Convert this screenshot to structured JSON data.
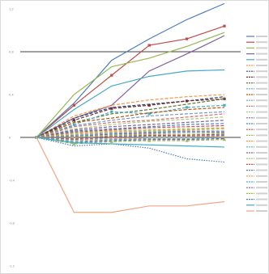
{
  "chart_data": {
    "type": "line",
    "title": "",
    "xlabel": "",
    "ylabel": "",
    "x": [
      0,
      1,
      2,
      3,
      4,
      5
    ],
    "ylim": [
      -1.2,
      1.2
    ],
    "yticks": [
      -1.2,
      -0.8,
      -0.4,
      0,
      0.4,
      0.8,
      1.2
    ],
    "ytick_labels": [
      "-1.2",
      "-0.8",
      "-0.4",
      "0",
      "0.4",
      "0.8",
      "1.2"
    ],
    "legend_position": "right",
    "grid": false,
    "series": [
      {
        "color": "#4a7ebb",
        "marker": "none",
        "dash": "solid",
        "values": [
          0,
          0.32,
          0.72,
          0.92,
          1.1,
          1.25
        ]
      },
      {
        "color": "#be4b48",
        "marker": "square",
        "dash": "solid",
        "values": [
          0,
          0.3,
          0.58,
          0.86,
          0.92,
          1.04
        ]
      },
      {
        "color": "#98b954",
        "marker": "none",
        "dash": "solid",
        "values": [
          0,
          0.4,
          0.66,
          0.74,
          0.85,
          0.98
        ]
      },
      {
        "color": "#7d60a0",
        "marker": "none",
        "dash": "solid",
        "values": [
          0,
          0.18,
          0.3,
          0.62,
          0.78,
          0.95
        ]
      },
      {
        "color": "#46aac4",
        "marker": "none",
        "dash": "solid",
        "values": [
          0,
          0.26,
          0.48,
          0.57,
          0.62,
          0.63
        ]
      },
      {
        "color": "#f79646",
        "marker": "none",
        "dash": "dashed",
        "values": [
          0,
          0.2,
          0.3,
          0.35,
          0.38,
          0.4
        ]
      },
      {
        "color": "#2c4d75",
        "marker": "none",
        "dash": "dashed",
        "values": [
          0,
          0.18,
          0.28,
          0.31,
          0.34,
          0.38
        ]
      },
      {
        "color": "#772c2a",
        "marker": "square",
        "dash": "dashed",
        "values": [
          0,
          0.16,
          0.27,
          0.3,
          0.34,
          0.36
        ]
      },
      {
        "color": "#5f7530",
        "marker": "none",
        "dash": "dashed",
        "values": [
          0,
          0.14,
          0.22,
          0.26,
          0.31,
          0.36
        ]
      },
      {
        "color": "#4bacc6",
        "marker": "square",
        "dash": "dashed",
        "values": [
          0,
          0.12,
          0.24,
          0.22,
          0.28,
          0.3
        ]
      },
      {
        "color": "#b65708",
        "marker": "none",
        "dash": "dashed",
        "values": [
          0,
          0.14,
          0.18,
          0.23,
          0.26,
          0.28
        ]
      },
      {
        "color": "#729aca",
        "marker": "none",
        "dash": "dashed",
        "values": [
          0,
          0.11,
          0.16,
          0.2,
          0.22,
          0.24
        ]
      },
      {
        "color": "#cd7371",
        "marker": "none",
        "dash": "dashed",
        "values": [
          0,
          0.1,
          0.14,
          0.16,
          0.19,
          0.22
        ]
      },
      {
        "color": "#afc97a",
        "marker": "none",
        "dash": "dashed",
        "values": [
          0,
          0.08,
          0.12,
          0.15,
          0.17,
          0.19
        ]
      },
      {
        "color": "#8064a2",
        "marker": "none",
        "dash": "dashed",
        "values": [
          0,
          0.07,
          0.1,
          0.12,
          0.14,
          0.16
        ]
      },
      {
        "color": "#4f81bd",
        "marker": "none",
        "dash": "dashed",
        "values": [
          0,
          0.06,
          0.08,
          0.1,
          0.12,
          0.13
        ]
      },
      {
        "color": "#c0504d",
        "marker": "none",
        "dash": "dashed",
        "values": [
          0,
          0.05,
          0.07,
          0.09,
          0.1,
          0.11
        ]
      },
      {
        "color": "#9bbb59",
        "marker": "none",
        "dash": "dashed",
        "values": [
          0,
          0.04,
          0.06,
          0.07,
          0.08,
          0.09
        ]
      },
      {
        "color": "#f79646",
        "marker": "none",
        "dash": "dashed",
        "values": [
          0,
          0.03,
          0.05,
          0.06,
          0.07,
          0.08
        ]
      },
      {
        "color": "#4bacc6",
        "marker": "none",
        "dash": "dashed",
        "values": [
          0,
          0.02,
          0.04,
          0.05,
          0.06,
          0.06
        ]
      },
      {
        "color": "#8064a2",
        "marker": "none",
        "dash": "dashed",
        "values": [
          0,
          0.01,
          0.03,
          0.04,
          0.05,
          0.05
        ]
      },
      {
        "color": "#9bbb59",
        "marker": "none",
        "dash": "dashed",
        "values": [
          0,
          0.0,
          0.02,
          0.03,
          0.03,
          0.04
        ]
      },
      {
        "color": "#c0504d",
        "marker": "none",
        "dash": "dashed",
        "values": [
          0,
          -0.01,
          0.01,
          0.02,
          0.02,
          0.03
        ]
      },
      {
        "color": "#4f81bd",
        "marker": "none",
        "dash": "dashed",
        "values": [
          0,
          -0.02,
          0.0,
          0.01,
          0.01,
          0.02
        ]
      },
      {
        "color": "#f79646",
        "marker": "none",
        "dash": "dashed",
        "values": [
          0,
          -0.03,
          -0.01,
          0.0,
          0.0,
          0.01
        ]
      },
      {
        "color": "#4bacc6",
        "marker": "none",
        "dash": "dashed",
        "values": [
          0,
          -0.04,
          -0.02,
          -0.01,
          -0.01,
          0.0
        ]
      },
      {
        "color": "#7d60a0",
        "marker": "none",
        "dash": "dashed",
        "values": [
          0,
          -0.05,
          -0.03,
          -0.02,
          -0.02,
          -0.01
        ]
      },
      {
        "color": "#98b954",
        "marker": "triangle",
        "dash": "dashed",
        "values": [
          0,
          -0.06,
          -0.04,
          -0.03,
          -0.03,
          -0.02
        ]
      },
      {
        "color": "#4a7ebb",
        "marker": "none",
        "dash": "dotted",
        "values": [
          0,
          -0.08,
          -0.06,
          -0.1,
          -0.2,
          -0.23
        ]
      },
      {
        "color": "#46aac4",
        "marker": "none",
        "dash": "solid",
        "values": [
          0,
          -0.05,
          -0.06,
          -0.07,
          -0.08,
          -0.09
        ]
      },
      {
        "color": "#f4a582",
        "marker": "none",
        "dash": "solid",
        "values": [
          0,
          -0.7,
          -0.7,
          -0.64,
          -0.64,
          -0.6
        ]
      }
    ]
  }
}
